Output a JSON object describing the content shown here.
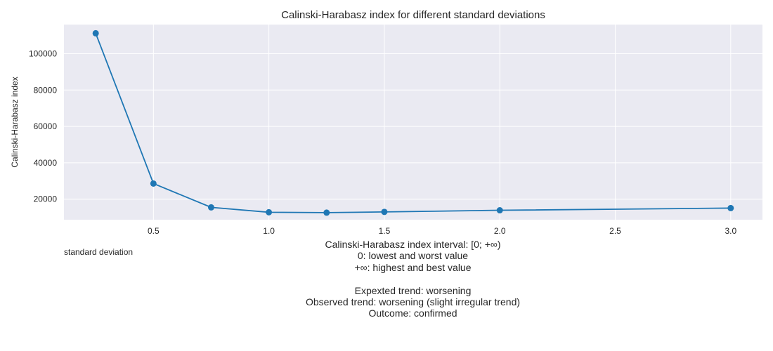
{
  "chart_data": {
    "type": "line",
    "title": "Calinski-Harabasz index for different standard deviations",
    "xlabel": "standard deviation",
    "ylabel": "Calinski-Harabasz index",
    "xlim": [
      0.1125,
      3.1375
    ],
    "ylim": [
      8700,
      116000
    ],
    "x_ticks": [
      0.5,
      1.0,
      1.5,
      2.0,
      2.5,
      3.0
    ],
    "x_tick_labels": [
      "0.5",
      "1.0",
      "1.5",
      "2.0",
      "2.5",
      "3.0"
    ],
    "y_ticks": [
      20000,
      40000,
      60000,
      80000,
      100000
    ],
    "y_tick_labels": [
      "20000",
      "40000",
      "60000",
      "80000",
      "100000"
    ],
    "grid": true,
    "series": [
      {
        "color": "#1f77b4",
        "marker": "circle",
        "x": [
          0.25,
          0.5,
          0.75,
          1.0,
          1.25,
          1.5,
          2.0,
          3.0
        ],
        "y": [
          111200,
          28600,
          15500,
          12800,
          12600,
          13000,
          13900,
          15100
        ]
      }
    ]
  },
  "colors": {
    "plot_background": "#eaeaf2",
    "grid": "#ffffff",
    "line": "#1f77b4"
  },
  "footer": {
    "interval": "Calinski-Harabasz index interval: [0; +∞)",
    "lowest": "0: lowest and worst value",
    "highest": "+∞: highest and best value",
    "expected": "Expexted trend: worsening",
    "observed": "Observed trend: worsening (slight irregular trend)",
    "outcome": "Outcome: confirmed"
  }
}
